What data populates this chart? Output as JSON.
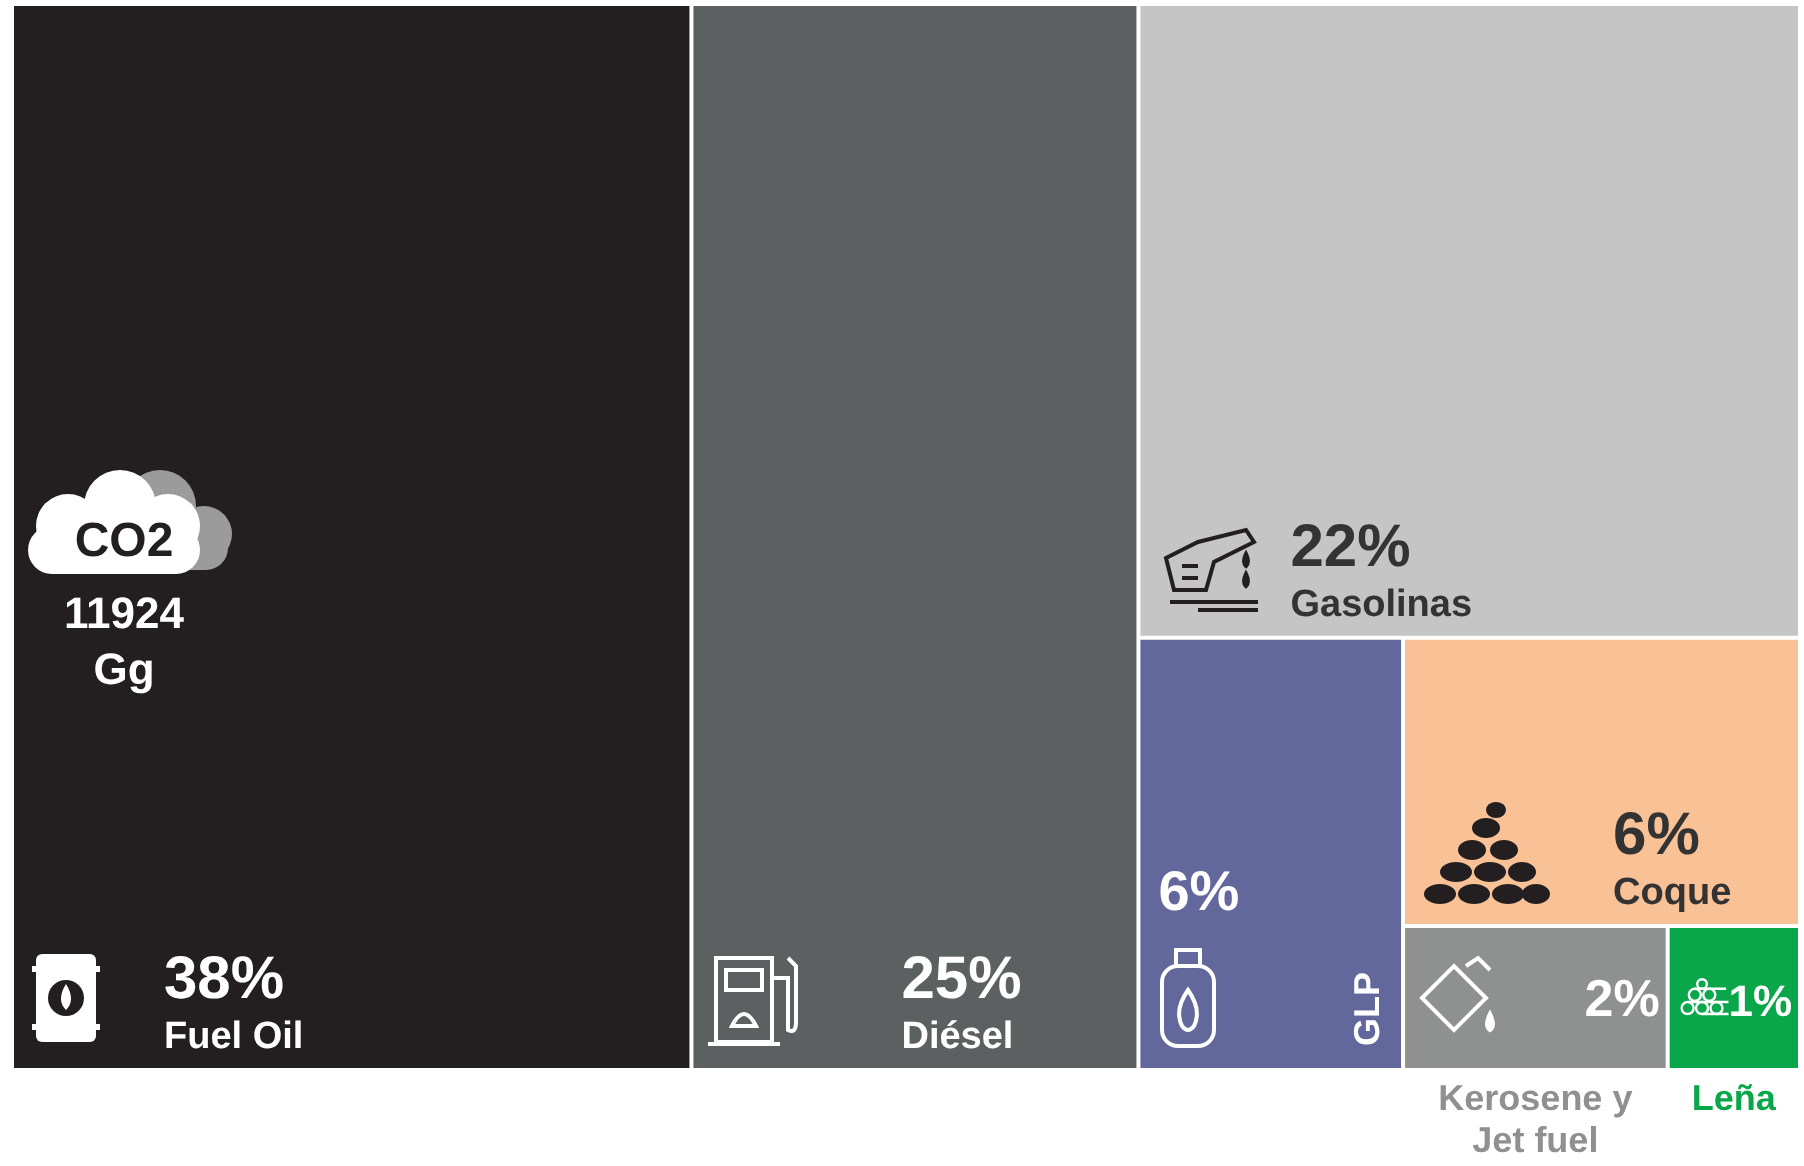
{
  "chart_data": {
    "type": "other",
    "categories": [
      "Fuel Oil",
      "Diésel",
      "Gasolinas",
      "GLP",
      "Coque",
      "Kerosene y Jet fuel",
      "Leña"
    ],
    "values": [
      38,
      25,
      22,
      6,
      6,
      2,
      1
    ],
    "value_labels": [
      "38%",
      "25%",
      "22%",
      "6%",
      "6%",
      "2%",
      "1%"
    ],
    "colors": [
      "#231f20",
      "#5d6061",
      "#c4c5c4",
      "#62689c",
      "#f9c196",
      "#8f9090",
      "#0aa64a"
    ],
    "annotations": [
      "CO2",
      "11924 Gg"
    ]
  }
}
